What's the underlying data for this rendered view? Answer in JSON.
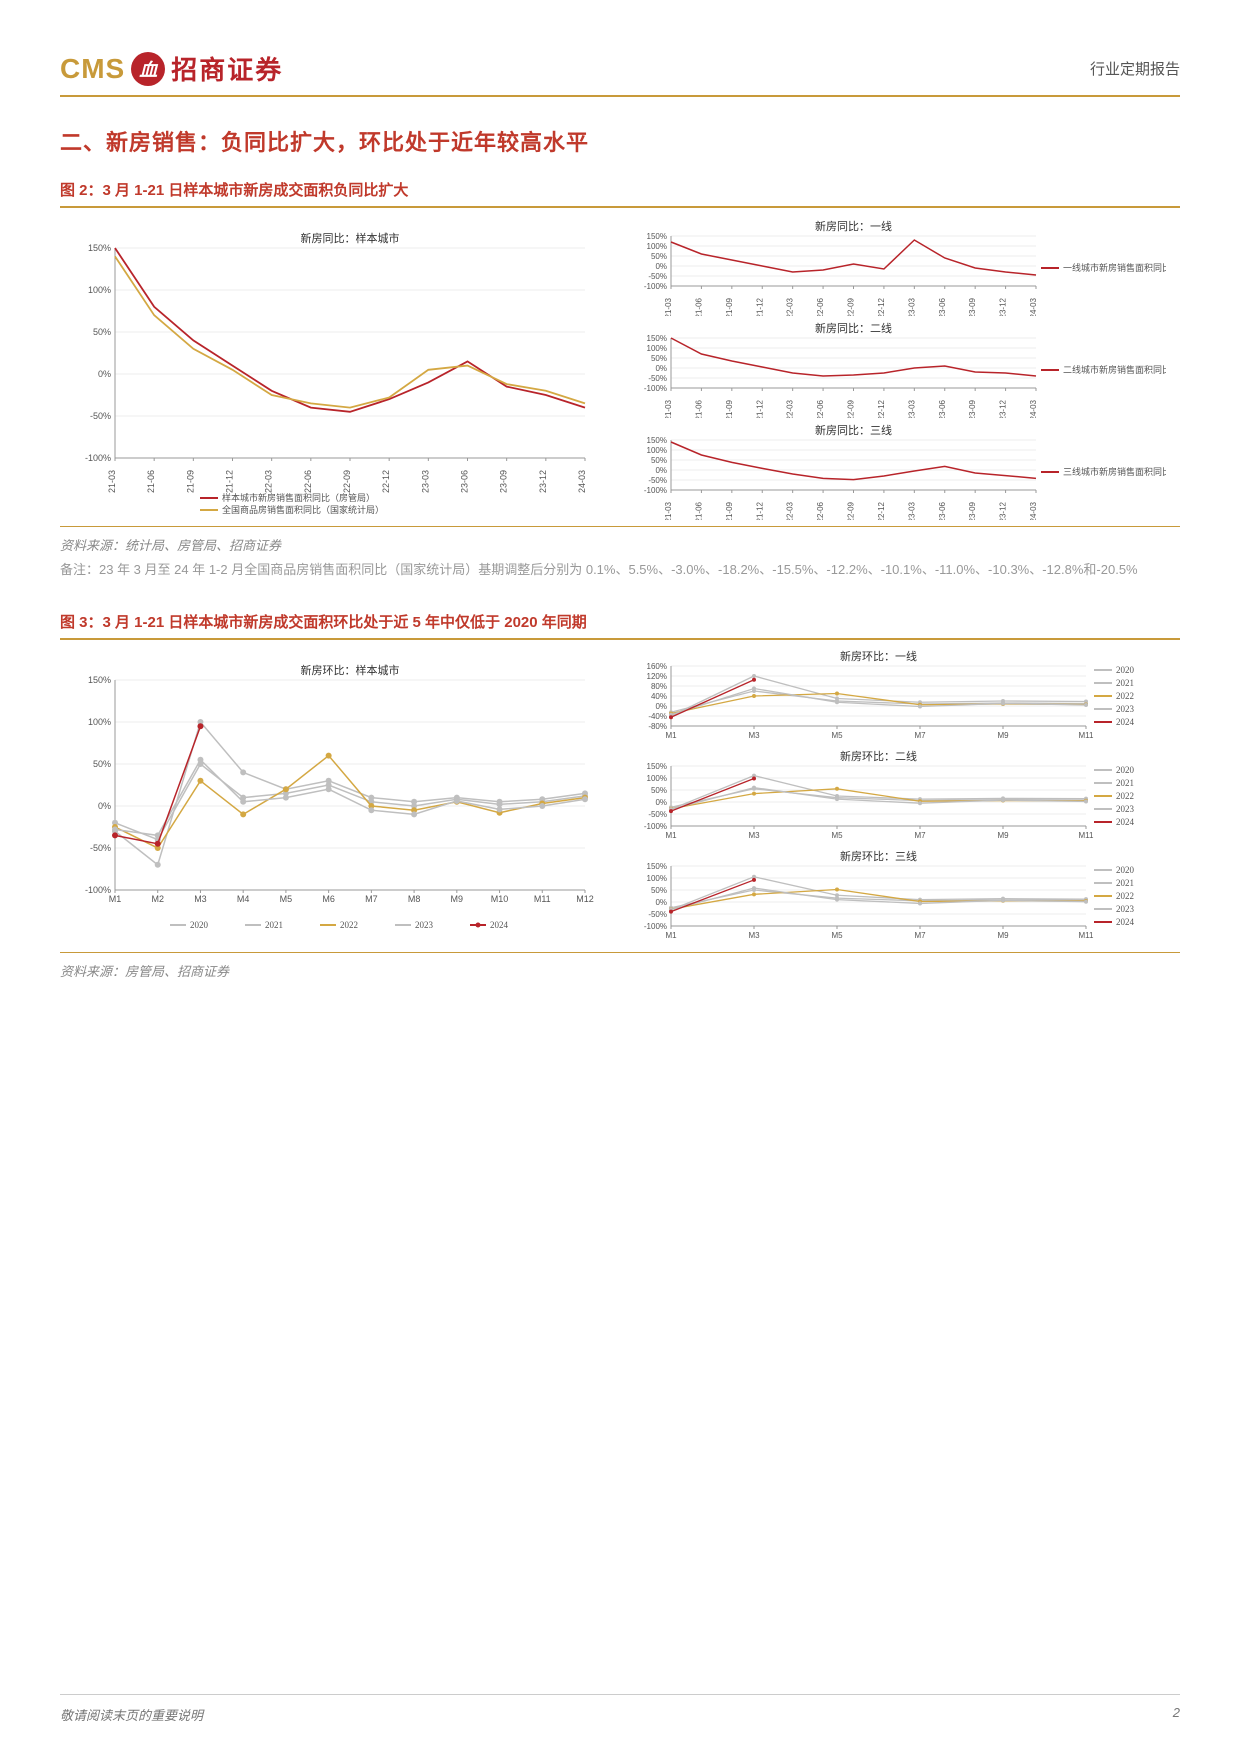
{
  "header": {
    "logo_en": "CMS",
    "logo_badge": "血",
    "logo_cn": "招商证券",
    "report_type": "行业定期报告"
  },
  "section2": {
    "title": "二、新房销售：负同比扩大，环比处于近年较高水平"
  },
  "fig2": {
    "title": "图 2：3 月 1-21 日样本城市新房成交面积负同比扩大",
    "source": "资料来源：统计局、房管局、招商证券",
    "note": "备注：23 年 3 月至 24 年 1-2 月全国商品房销售面积同比（国家统计局）基期调整后分别为 0.1%、5.5%、-3.0%、-18.2%、-15.5%、-12.2%、-10.1%、-11.0%、-10.3%、-12.8%和-20.5%",
    "main": {
      "type": "line",
      "title": "新房同比：样本城市",
      "ylim": [
        -100,
        150
      ],
      "ytick_step": 50,
      "xlabels": [
        "21-03",
        "21-06",
        "21-09",
        "21-12",
        "22-03",
        "22-06",
        "22-09",
        "22-12",
        "23-03",
        "23-06",
        "23-09",
        "23-12",
        "24-03"
      ],
      "series": [
        {
          "name": "样本城市新房销售面积同比（房管局）",
          "color": "#b8242a",
          "values": [
            150,
            80,
            40,
            10,
            -20,
            -40,
            -45,
            -30,
            -10,
            15,
            -15,
            -25,
            -40
          ]
        },
        {
          "name": "全国商品房销售面积同比（国家统计局）",
          "color": "#d4a843",
          "values": [
            140,
            70,
            30,
            5,
            -25,
            -35,
            -40,
            -28,
            5,
            10,
            -12,
            -20,
            -35
          ]
        }
      ],
      "grid_color": "#e0e0e0",
      "background_color": "#ffffff",
      "line_width": 1.8
    },
    "small": [
      {
        "title": "新房同比：一线",
        "legend": "一线城市新房销售面积同比（房管局）",
        "color": "#b8242a",
        "ylim": [
          -100,
          150
        ],
        "yticks": [
          -100,
          -50,
          0,
          50,
          100,
          150
        ],
        "xlabels": [
          "21-03",
          "21-06",
          "21-09",
          "21-12",
          "22-03",
          "22-06",
          "22-09",
          "22-12",
          "23-03",
          "23-06",
          "23-09",
          "23-12",
          "24-03"
        ],
        "values": [
          120,
          60,
          30,
          0,
          -30,
          -20,
          10,
          -15,
          130,
          40,
          -10,
          -30,
          -45
        ]
      },
      {
        "title": "新房同比：二线",
        "legend": "二线城市新房销售面积同比（房管局）",
        "color": "#b8242a",
        "ylim": [
          -100,
          150
        ],
        "yticks": [
          -100,
          -50,
          0,
          50,
          100,
          150
        ],
        "xlabels": [
          "21-03",
          "21-06",
          "21-09",
          "21-12",
          "22-03",
          "22-06",
          "22-09",
          "22-12",
          "23-03",
          "23-06",
          "23-09",
          "23-12",
          "24-03"
        ],
        "values": [
          150,
          70,
          35,
          5,
          -25,
          -40,
          -35,
          -25,
          0,
          10,
          -20,
          -25,
          -40
        ]
      },
      {
        "title": "新房同比：三线",
        "legend": "三线城市新房销售面积同比（房管局）",
        "color": "#b8242a",
        "ylim": [
          -100,
          150
        ],
        "yticks": [
          -100,
          -50,
          0,
          50,
          100,
          150
        ],
        "xlabels": [
          "21-03",
          "21-06",
          "21-09",
          "21-12",
          "22-03",
          "22-06",
          "22-09",
          "22-12",
          "23-03",
          "23-06",
          "23-09",
          "23-12",
          "24-03"
        ],
        "values": [
          140,
          75,
          38,
          8,
          -20,
          -42,
          -48,
          -30,
          -5,
          18,
          -15,
          -28,
          -42
        ]
      }
    ]
  },
  "fig3": {
    "title": "图 3：3 月 1-21 日样本城市新房成交面积环比处于近 5 年中仅低于 2020 年同期",
    "source": "资料来源：房管局、招商证券",
    "main": {
      "type": "line",
      "title": "新房环比：样本城市",
      "ylim": [
        -100,
        150
      ],
      "ytick_step": 50,
      "xlabels": [
        "M1",
        "M2",
        "M3",
        "M4",
        "M5",
        "M6",
        "M7",
        "M8",
        "M9",
        "M10",
        "M11",
        "M12"
      ],
      "legend_items": [
        "2020",
        "2021",
        "2022",
        "2023",
        "2024"
      ],
      "colors": {
        "2020": "#bfbfbf",
        "2021": "#bfbfbf",
        "2022": "#d4a843",
        "2023": "#bfbfbf",
        "2024": "#b8242a"
      },
      "series": {
        "2020": [
          -30,
          -70,
          100,
          40,
          20,
          30,
          10,
          5,
          10,
          5,
          8,
          15
        ],
        "2021": [
          -20,
          -40,
          50,
          10,
          15,
          25,
          5,
          0,
          8,
          2,
          5,
          12
        ],
        "2022": [
          -25,
          -50,
          30,
          -10,
          20,
          60,
          0,
          -5,
          5,
          -8,
          3,
          10
        ],
        "2023": [
          -28,
          -35,
          55,
          5,
          10,
          20,
          -5,
          -10,
          6,
          -4,
          0,
          8
        ],
        "2024": [
          -35,
          -45,
          95
        ]
      },
      "line_width": 1.5,
      "marker_size": 3
    },
    "small": [
      {
        "title": "新房环比：一线",
        "ylim": [
          -80,
          160
        ],
        "yticks": [
          -80,
          -40,
          0,
          40,
          80,
          120,
          160
        ],
        "xlabels": [
          "M1",
          "M3",
          "M5",
          "M7",
          "M9",
          "M11"
        ],
        "series": {
          "2020": [
            -40,
            120,
            30,
            15,
            20,
            18
          ],
          "2021": [
            -25,
            60,
            20,
            8,
            12,
            10
          ],
          "2022": [
            -30,
            40,
            50,
            5,
            8,
            6
          ],
          "2023": [
            -35,
            70,
            15,
            -2,
            10,
            4
          ],
          "2024": [
            -45,
            105
          ]
        }
      },
      {
        "title": "新房环比：二线",
        "ylim": [
          -100,
          150
        ],
        "yticks": [
          -100,
          -50,
          0,
          50,
          100,
          150
        ],
        "xlabels": [
          "M1",
          "M3",
          "M5",
          "M7",
          "M9",
          "M11"
        ],
        "series": {
          "2020": [
            -30,
            110,
            25,
            12,
            15,
            14
          ],
          "2021": [
            -22,
            55,
            18,
            6,
            10,
            8
          ],
          "2022": [
            -28,
            35,
            55,
            3,
            6,
            5
          ],
          "2023": [
            -30,
            60,
            12,
            -5,
            8,
            2
          ],
          "2024": [
            -38,
            98
          ]
        }
      },
      {
        "title": "新房环比：三线",
        "ylim": [
          -100,
          150
        ],
        "yticks": [
          -100,
          -50,
          0,
          50,
          100,
          150
        ],
        "xlabels": [
          "M1",
          "M3",
          "M5",
          "M7",
          "M9",
          "M11"
        ],
        "series": {
          "2020": [
            -32,
            105,
            28,
            10,
            14,
            12
          ],
          "2021": [
            -24,
            50,
            16,
            5,
            9,
            7
          ],
          "2022": [
            -30,
            32,
            52,
            2,
            5,
            4
          ],
          "2023": [
            -32,
            58,
            10,
            -6,
            7,
            1
          ],
          "2024": [
            -40,
            92
          ]
        }
      }
    ]
  },
  "footer": {
    "disclaimer": "敬请阅读末页的重要说明",
    "page": "2"
  }
}
